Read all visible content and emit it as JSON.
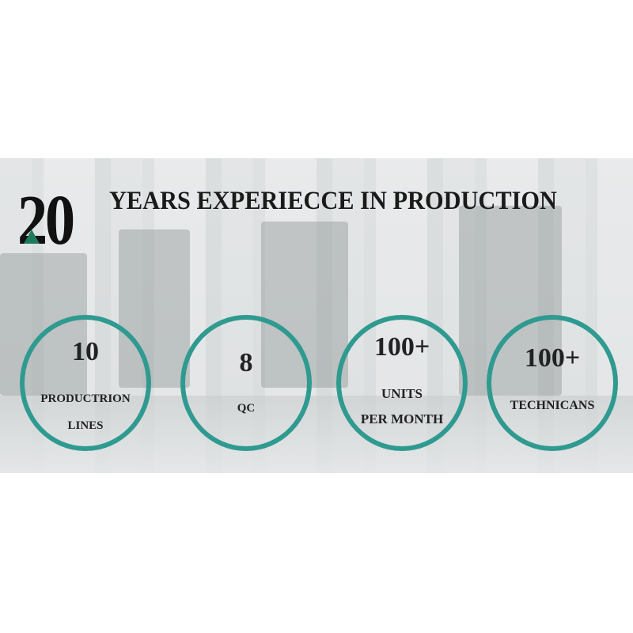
{
  "headline": {
    "number": "20",
    "text": "YEARS EXPERIECCE IN PRODUCTION"
  },
  "stats": [
    {
      "value": "10",
      "label_lines": [
        "PRODUCTRION",
        "LINES"
      ]
    },
    {
      "value": "8",
      "label_lines": [
        "QC"
      ]
    },
    {
      "value": "100+",
      "label_lines": [
        "UNITS",
        "PER MONTH"
      ]
    },
    {
      "value": "100+",
      "label_lines": [
        "TECHNICANS"
      ]
    }
  ],
  "colors": {
    "circle_ring": "#2f9a90",
    "accent_triangle": "#1e7a5a",
    "text": "#1a1a1a"
  }
}
